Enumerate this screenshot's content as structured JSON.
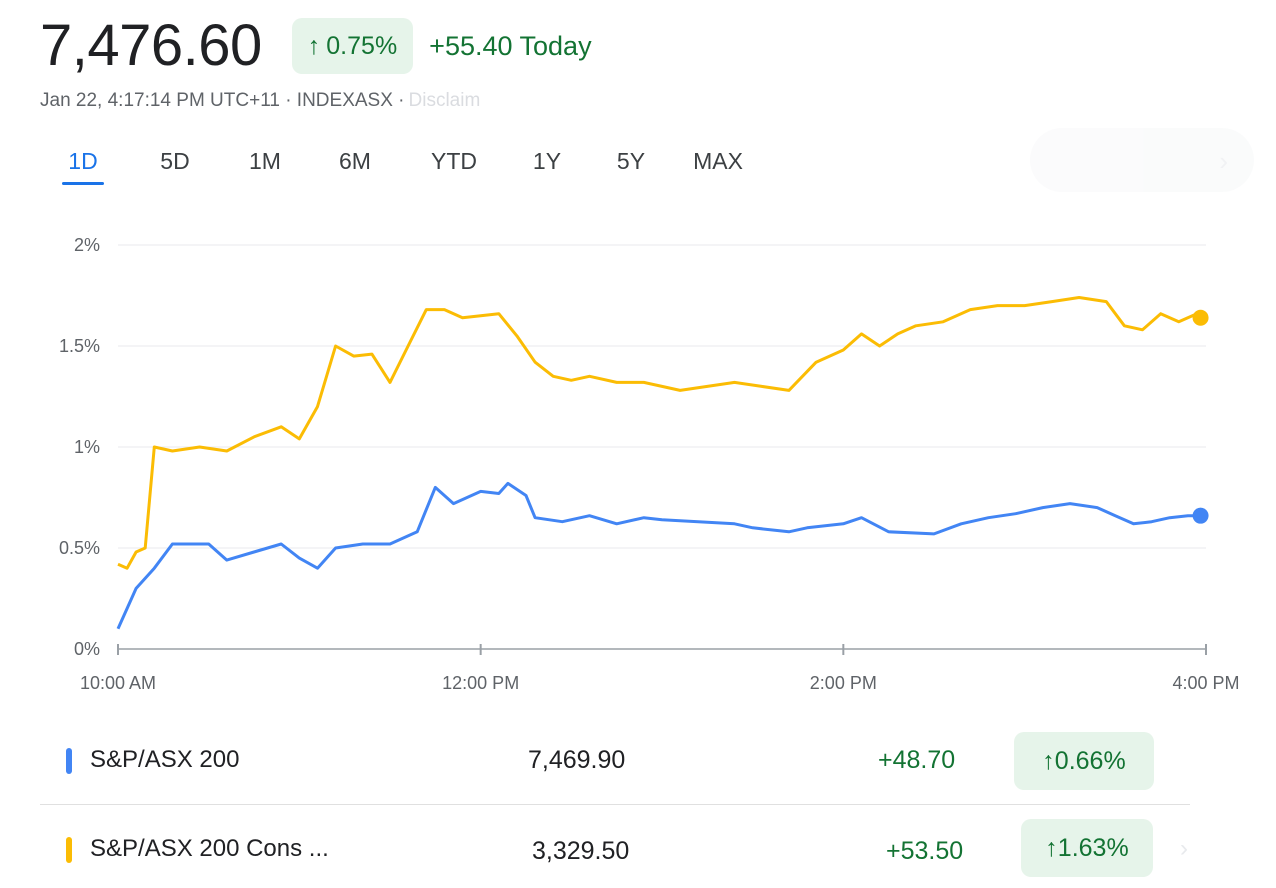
{
  "header": {
    "price": "7,476.60",
    "change_pct": "0.75%",
    "change_today": "+55.40 Today",
    "timestamp": "Jan 22, 4:17:14 PM UTC+11 · INDEXASX ·",
    "faded_text": "Disclaim"
  },
  "icons": {
    "up_arrow": "arrow-up-icon",
    "chevron": "chevron-right-icon"
  },
  "tabs": [
    {
      "label": "1D",
      "active": true
    },
    {
      "label": "5D"
    },
    {
      "label": "1M"
    },
    {
      "label": "6M"
    },
    {
      "label": "YTD"
    },
    {
      "label": "1Y"
    },
    {
      "label": "5Y"
    },
    {
      "label": "MAX"
    }
  ],
  "colors": {
    "series1": "#4285f4",
    "series2": "#fbbc04",
    "positive": "#137333",
    "active_tab": "#1a73e8"
  },
  "chart_data": {
    "type": "line",
    "x_ticks": [
      "10:00 AM",
      "12:00 PM",
      "2:00 PM",
      "4:00 PM"
    ],
    "y_ticks": [
      "0%",
      "0.5%",
      "1%",
      "1.5%",
      "2%"
    ],
    "xlim_hours": [
      10,
      16
    ],
    "ylim": [
      0,
      2
    ],
    "grid": true,
    "series": [
      {
        "name": "S&P/ASX 200",
        "color": "#4285f4",
        "points": [
          [
            10.0,
            0.1
          ],
          [
            10.1,
            0.3
          ],
          [
            10.2,
            0.4
          ],
          [
            10.3,
            0.52
          ],
          [
            10.5,
            0.52
          ],
          [
            10.6,
            0.44
          ],
          [
            10.75,
            0.48
          ],
          [
            10.9,
            0.52
          ],
          [
            11.0,
            0.45
          ],
          [
            11.1,
            0.4
          ],
          [
            11.2,
            0.5
          ],
          [
            11.35,
            0.52
          ],
          [
            11.5,
            0.52
          ],
          [
            11.65,
            0.58
          ],
          [
            11.75,
            0.8
          ],
          [
            11.85,
            0.72
          ],
          [
            12.0,
            0.78
          ],
          [
            12.1,
            0.77
          ],
          [
            12.15,
            0.82
          ],
          [
            12.25,
            0.76
          ],
          [
            12.3,
            0.65
          ],
          [
            12.45,
            0.63
          ],
          [
            12.6,
            0.66
          ],
          [
            12.75,
            0.62
          ],
          [
            12.9,
            0.65
          ],
          [
            13.0,
            0.64
          ],
          [
            13.2,
            0.63
          ],
          [
            13.4,
            0.62
          ],
          [
            13.5,
            0.6
          ],
          [
            13.7,
            0.58
          ],
          [
            13.8,
            0.6
          ],
          [
            14.0,
            0.62
          ],
          [
            14.1,
            0.65
          ],
          [
            14.25,
            0.58
          ],
          [
            14.5,
            0.57
          ],
          [
            14.65,
            0.62
          ],
          [
            14.8,
            0.65
          ],
          [
            14.95,
            0.67
          ],
          [
            15.1,
            0.7
          ],
          [
            15.25,
            0.72
          ],
          [
            15.4,
            0.7
          ],
          [
            15.5,
            0.66
          ],
          [
            15.6,
            0.62
          ],
          [
            15.7,
            0.63
          ],
          [
            15.8,
            0.65
          ],
          [
            15.9,
            0.66
          ],
          [
            15.97,
            0.66
          ]
        ]
      },
      {
        "name": "S&P/ASX 200 Cons ...",
        "color": "#fbbc04",
        "points": [
          [
            10.0,
            0.42
          ],
          [
            10.05,
            0.4
          ],
          [
            10.1,
            0.48
          ],
          [
            10.15,
            0.5
          ],
          [
            10.2,
            1.0
          ],
          [
            10.3,
            0.98
          ],
          [
            10.45,
            1.0
          ],
          [
            10.6,
            0.98
          ],
          [
            10.75,
            1.05
          ],
          [
            10.9,
            1.1
          ],
          [
            11.0,
            1.04
          ],
          [
            11.1,
            1.2
          ],
          [
            11.2,
            1.5
          ],
          [
            11.3,
            1.45
          ],
          [
            11.4,
            1.46
          ],
          [
            11.5,
            1.32
          ],
          [
            11.6,
            1.5
          ],
          [
            11.7,
            1.68
          ],
          [
            11.8,
            1.68
          ],
          [
            11.9,
            1.64
          ],
          [
            12.0,
            1.65
          ],
          [
            12.1,
            1.66
          ],
          [
            12.2,
            1.55
          ],
          [
            12.3,
            1.42
          ],
          [
            12.4,
            1.35
          ],
          [
            12.5,
            1.33
          ],
          [
            12.6,
            1.35
          ],
          [
            12.75,
            1.32
          ],
          [
            12.9,
            1.32
          ],
          [
            13.0,
            1.3
          ],
          [
            13.1,
            1.28
          ],
          [
            13.25,
            1.3
          ],
          [
            13.4,
            1.32
          ],
          [
            13.55,
            1.3
          ],
          [
            13.7,
            1.28
          ],
          [
            13.85,
            1.42
          ],
          [
            14.0,
            1.48
          ],
          [
            14.1,
            1.56
          ],
          [
            14.2,
            1.5
          ],
          [
            14.3,
            1.56
          ],
          [
            14.4,
            1.6
          ],
          [
            14.55,
            1.62
          ],
          [
            14.7,
            1.68
          ],
          [
            14.85,
            1.7
          ],
          [
            15.0,
            1.7
          ],
          [
            15.15,
            1.72
          ],
          [
            15.3,
            1.74
          ],
          [
            15.45,
            1.72
          ],
          [
            15.55,
            1.6
          ],
          [
            15.65,
            1.58
          ],
          [
            15.75,
            1.66
          ],
          [
            15.85,
            1.62
          ],
          [
            15.95,
            1.66
          ],
          [
            15.97,
            1.64
          ]
        ]
      }
    ]
  },
  "rows": [
    {
      "name": "S&P/ASX 200",
      "value": "7,469.90",
      "change": "+48.70",
      "pct": "0.66%",
      "color": "#4285f4"
    },
    {
      "name": "S&P/ASX 200 Cons ...",
      "value": "3,329.50",
      "change": "+53.50",
      "pct": "1.63%",
      "color": "#fbbc04"
    }
  ]
}
